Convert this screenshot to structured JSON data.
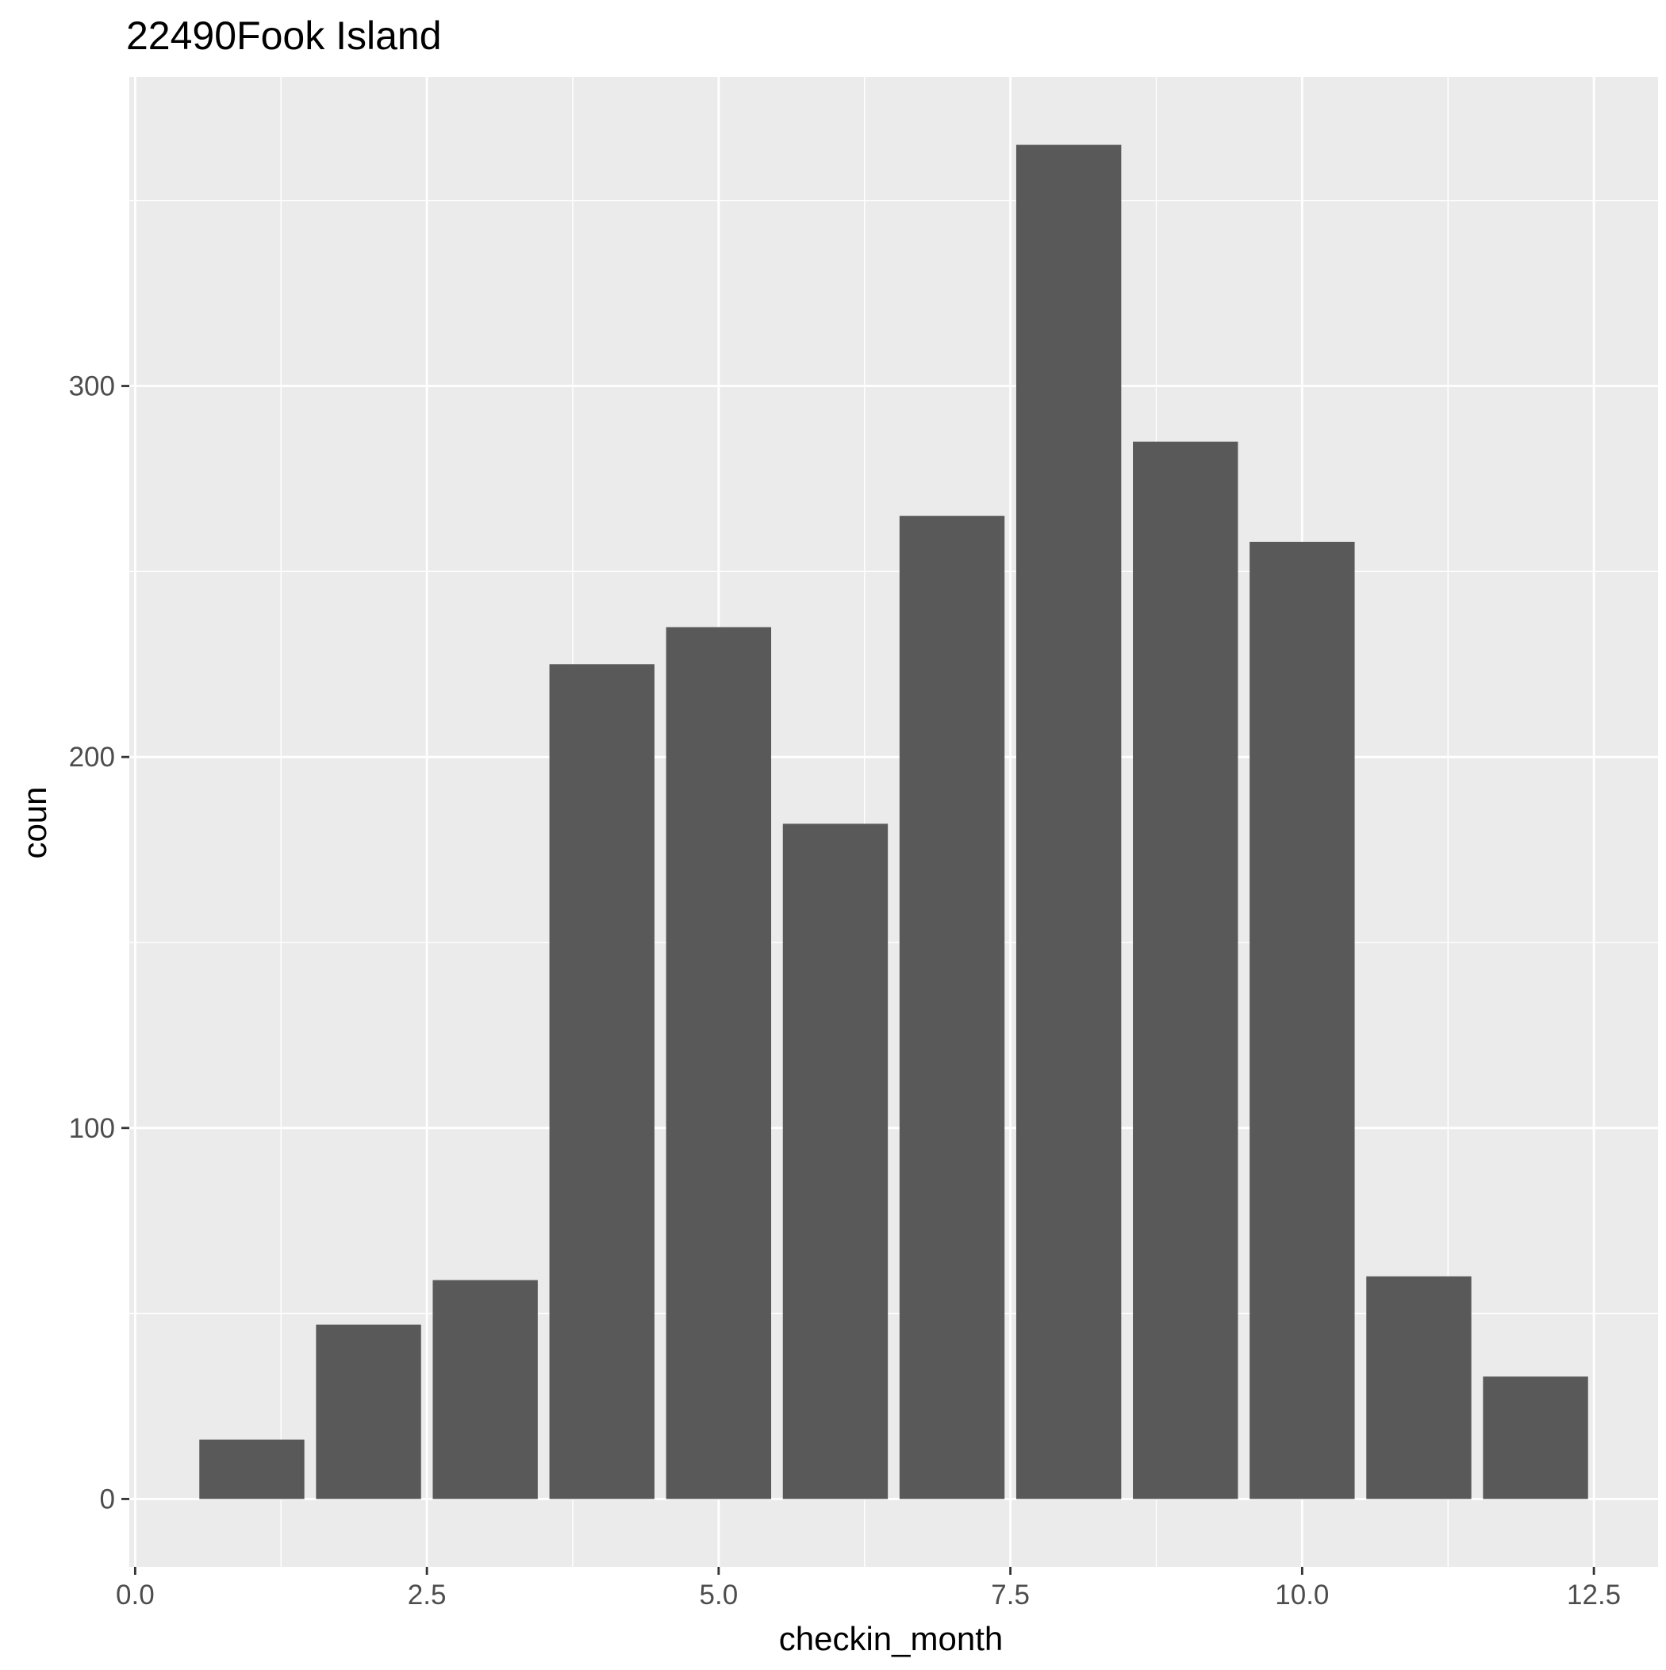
{
  "chart_data": {
    "type": "bar",
    "title": "22490Fook Island",
    "xlabel": "checkin_month",
    "ylabel": "coun",
    "x": [
      1,
      2,
      3,
      4,
      5,
      6,
      7,
      8,
      9,
      10,
      11,
      12
    ],
    "values": [
      16,
      47,
      59,
      225,
      235,
      182,
      265,
      365,
      285,
      258,
      60,
      33
    ],
    "xlim": [
      -0.05,
      13.05
    ],
    "ylim": [
      -18.3,
      383.3
    ],
    "x_ticks": [
      0.0,
      2.5,
      5.0,
      7.5,
      10.0,
      12.5
    ],
    "x_tick_labels": [
      "0.0",
      "2.5",
      "5.0",
      "7.5",
      "10.0",
      "12.5"
    ],
    "y_ticks": [
      0,
      100,
      200,
      300
    ],
    "y_tick_labels": [
      "0",
      "100",
      "200",
      "300"
    ],
    "bar_width": 0.9,
    "grid": true,
    "legend": "none",
    "colors": {
      "panel_background": "#ebebeb",
      "grid_major": "#ffffff",
      "bar_fill": "#595959",
      "tick_text": "#4d4d4d",
      "axis_tick": "#333333"
    }
  }
}
